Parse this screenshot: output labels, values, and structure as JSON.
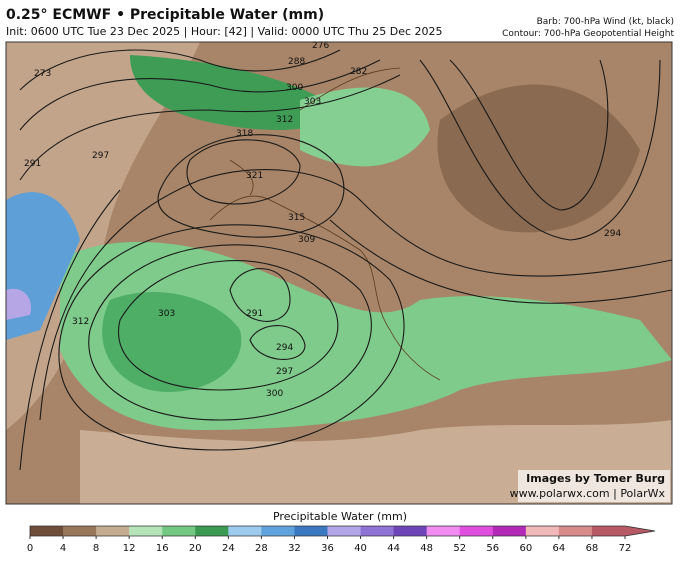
{
  "header": {
    "title": "0.25° ECMWF • Precipitable Water (mm)",
    "subtitle": "Init: 0600 UTC Tue 23 Dec 2025 | Hour: [42] | Valid: 0000 UTC Thu 25 Dec 2025",
    "right_line_1": "Barb: 700-hPa Wind (kt, black)",
    "right_line_2": "Contour: 700-hPa Geopotential Height"
  },
  "credits": {
    "line_1": "Images by Tomer Burg",
    "line_2": "www.polarwx.com | PolarWx"
  },
  "contour_labels": [
    273,
    276,
    288,
    282,
    300,
    303,
    312,
    318,
    321,
    315,
    309,
    291,
    297,
    294,
    303,
    291,
    294,
    297,
    300,
    312
  ],
  "colorbar": {
    "title": "Precipitable Water (mm)",
    "ticks": [
      0,
      4,
      8,
      12,
      16,
      20,
      24,
      28,
      32,
      36,
      40,
      44,
      48,
      52,
      56,
      60,
      64,
      68,
      72
    ],
    "colors": [
      "#6e4e38",
      "#98765a",
      "#c6ab93",
      "#b4e4b8",
      "#74c982",
      "#3b9a52",
      "#9ccbee",
      "#5fa3dc",
      "#3a78c2",
      "#b3a6e8",
      "#8f72d6",
      "#6d45b8",
      "#f08cf0",
      "#e04ee0",
      "#b42ab8",
      "#f0b8b8",
      "#d88a8a",
      "#b85a66"
    ]
  }
}
